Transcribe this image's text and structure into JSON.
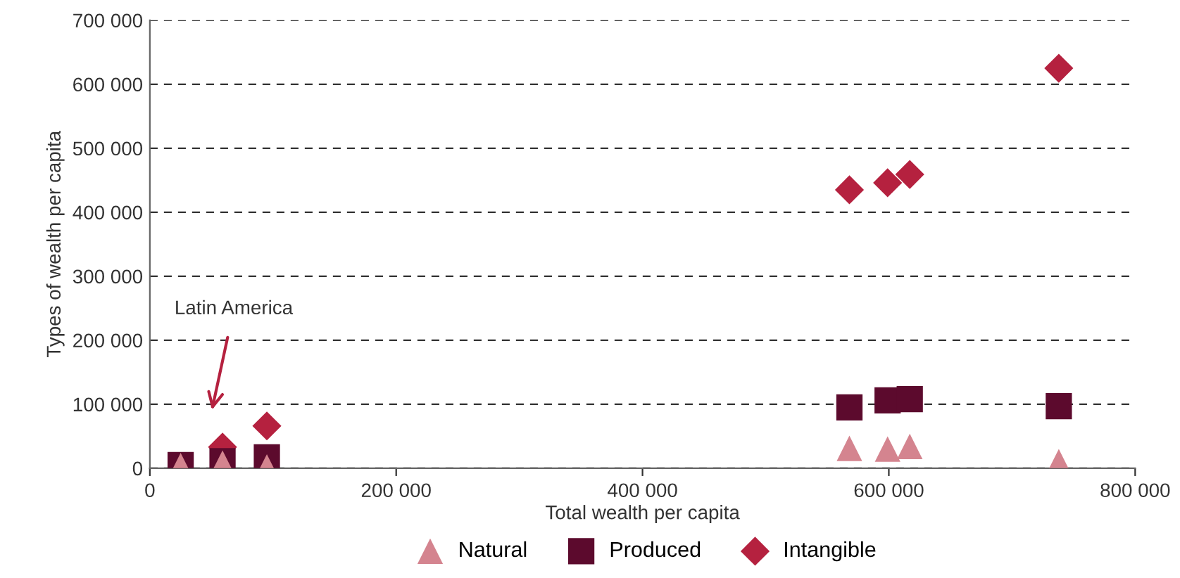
{
  "chart_data": {
    "type": "scatter",
    "xlabel": "Total wealth per capita",
    "ylabel": "Types of wealth per capita",
    "x": [
      25000,
      59000,
      95000,
      568000,
      599000,
      617000,
      738000
    ],
    "series": [
      {
        "name": "Natural",
        "color": "#d4848f",
        "marker": "triangle",
        "values": [
          4000,
          8000,
          2000,
          31000,
          30000,
          34000,
          10000
        ]
      },
      {
        "name": "Produced",
        "color": "#5c0a2d",
        "marker": "square",
        "values": [
          5000,
          11000,
          17000,
          95000,
          106000,
          108000,
          97000
        ]
      },
      {
        "name": "Intangible",
        "color": "#b5213f",
        "marker": "diamond",
        "values": [
          null,
          33000,
          66000,
          435000,
          446000,
          459000,
          625000
        ]
      }
    ],
    "annotations": [
      "Latin America"
    ],
    "xlim": [
      0,
      800000
    ],
    "ylim": [
      0,
      700000
    ],
    "xticks": [
      {
        "value": 0,
        "label": "0"
      },
      {
        "value": 200000,
        "label": "200 000"
      },
      {
        "value": 400000,
        "label": "400 000"
      },
      {
        "value": 600000,
        "label": "600 000"
      },
      {
        "value": 800000,
        "label": "800 000"
      }
    ],
    "yticks": [
      {
        "value": 0,
        "label": "0"
      },
      {
        "value": 100000,
        "label": "100 000"
      },
      {
        "value": 200000,
        "label": "200 000"
      },
      {
        "value": 300000,
        "label": "300 000"
      },
      {
        "value": 400000,
        "label": "400 000"
      },
      {
        "value": 500000,
        "label": "500 000"
      },
      {
        "value": 600000,
        "label": "600 000"
      },
      {
        "value": 700000,
        "label": "700 000"
      }
    ],
    "grid": "y",
    "legend": "bottom"
  }
}
